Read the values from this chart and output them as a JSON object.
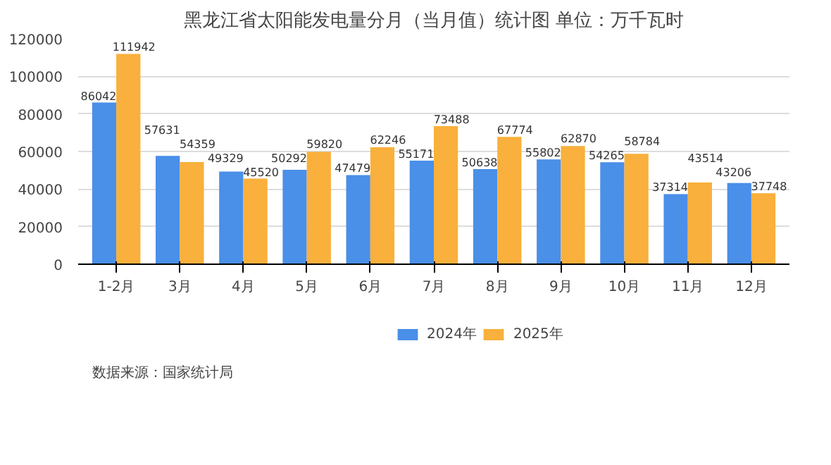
{
  "chart_data": {
    "type": "bar",
    "title": "黑龙江省太阳能发电量分月（当月值）统计图 单位：万千瓦时",
    "categories": [
      "1-2月",
      "3月",
      "4月",
      "5月",
      "6月",
      "7月",
      "8月",
      "9月",
      "10月",
      "11月",
      "12月"
    ],
    "series": [
      {
        "name": "2024年",
        "color": "#4a8fe8",
        "values": [
          86042,
          57631,
          49329,
          50292,
          47479,
          55171,
          50638,
          55802,
          54265,
          37314,
          43206
        ]
      },
      {
        "name": "2025年",
        "color": "#f9b03c",
        "values": [
          111942,
          54359,
          45520,
          59820,
          62246,
          73488,
          67774,
          62870,
          58784,
          43514,
          37748
        ]
      }
    ],
    "ylim": [
      0,
      120000
    ],
    "yticks": [
      0,
      20000,
      40000,
      60000,
      80000,
      100000,
      120000
    ],
    "grid": "y",
    "legend": "bottom",
    "data_labels": true,
    "annotations": [
      "数据来源：国家统计局"
    ]
  }
}
